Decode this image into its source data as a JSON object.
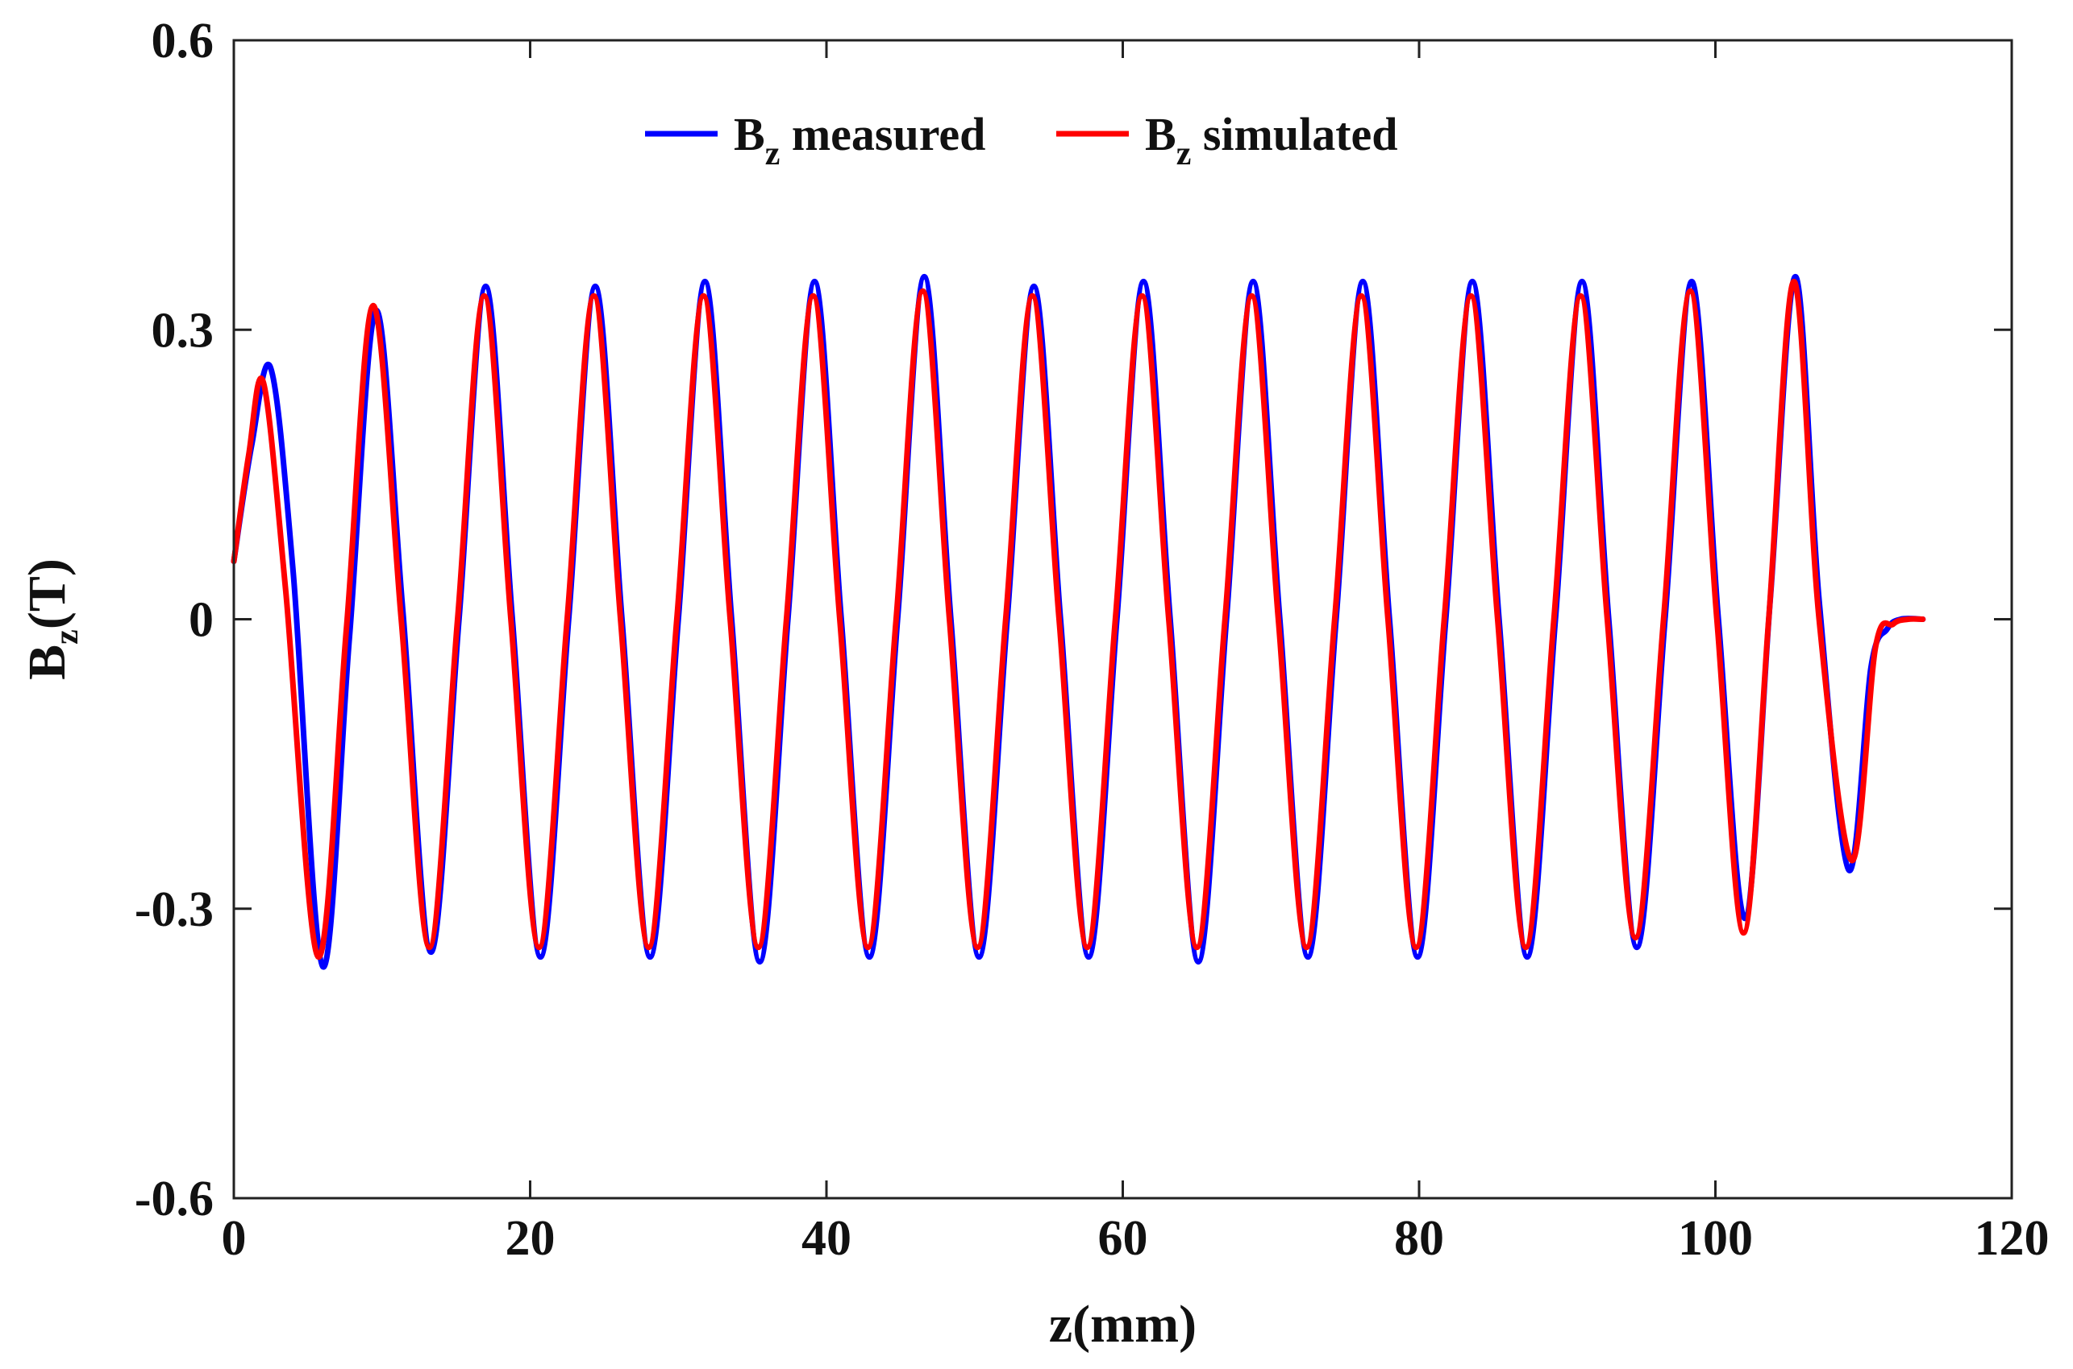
{
  "chart_data": {
    "type": "line",
    "title": "",
    "xlabel": "z(mm)",
    "ylabel": {
      "base": "B",
      "sub": "z",
      "rest": "(T)"
    },
    "xlim": [
      0,
      120
    ],
    "ylim": [
      -0.6,
      0.6
    ],
    "xticks": [
      0,
      20,
      40,
      60,
      80,
      100,
      120
    ],
    "xtick_labels": [
      "0",
      "20",
      "40",
      "60",
      "80",
      "100",
      "120"
    ],
    "yticks": [
      -0.6,
      -0.3,
      0,
      0.3,
      0.6
    ],
    "ytick_labels": [
      "-0.6",
      "-0.3",
      "0",
      "0.3",
      "0.6"
    ],
    "grid": false,
    "legend_position": "top-center",
    "series": [
      {
        "name": "measured",
        "label_base": "B",
        "label_sub": "z",
        "label_rest": " measured",
        "color": "#0000FF",
        "x": [
          0,
          1.2,
          2.5,
          4.0,
          6.0,
          7.8,
          9.6,
          11.4,
          13.3,
          15.2,
          17.0,
          18.8,
          20.7,
          22.6,
          24.4,
          26.2,
          28.1,
          30.0,
          31.8,
          33.6,
          35.5,
          37.4,
          39.2,
          41.0,
          42.9,
          44.8,
          46.6,
          48.4,
          50.3,
          52.2,
          54.0,
          55.8,
          57.7,
          59.6,
          61.4,
          63.2,
          65.1,
          67.0,
          68.8,
          70.6,
          72.5,
          74.4,
          76.2,
          78.0,
          79.9,
          81.8,
          83.6,
          85.4,
          87.3,
          89.2,
          91.0,
          92.8,
          94.7,
          96.6,
          98.4,
          100.2,
          102.0,
          103.7,
          105.4,
          107.0,
          109.0,
          110.5,
          111.6,
          112.5,
          114.0
        ],
        "y": [
          0.06,
          0.18,
          0.26,
          0.05,
          -0.36,
          -0.02,
          0.32,
          0.01,
          -0.345,
          0.0,
          0.345,
          0.0,
          -0.35,
          0.0,
          0.345,
          0.0,
          -0.35,
          0.0,
          0.35,
          0.0,
          -0.355,
          0.0,
          0.35,
          0.0,
          -0.35,
          0.0,
          0.355,
          0.0,
          -0.35,
          0.0,
          0.345,
          0.0,
          -0.35,
          0.0,
          0.35,
          0.0,
          -0.355,
          0.0,
          0.35,
          0.0,
          -0.35,
          0.0,
          0.35,
          0.0,
          -0.35,
          0.0,
          0.35,
          0.0,
          -0.35,
          0.0,
          0.35,
          0.0,
          -0.34,
          0.0,
          0.35,
          0.0,
          -0.31,
          0.02,
          0.355,
          0.02,
          -0.26,
          -0.05,
          -0.01,
          0.0,
          0.0
        ]
      },
      {
        "name": "simulated",
        "label_base": "B",
        "label_sub": "z",
        "label_rest": " simulated",
        "color": "#FF0000",
        "x": [
          0,
          1.0,
          2.0,
          3.5,
          5.7,
          7.6,
          9.4,
          11.3,
          13.2,
          15.1,
          16.9,
          18.7,
          20.6,
          22.5,
          24.3,
          26.1,
          28.0,
          29.9,
          31.7,
          33.5,
          35.4,
          37.3,
          39.1,
          40.9,
          42.8,
          44.7,
          46.5,
          48.3,
          50.2,
          52.1,
          53.9,
          55.7,
          57.6,
          59.5,
          61.3,
          63.1,
          65.0,
          66.9,
          68.7,
          70.5,
          72.4,
          74.3,
          76.1,
          77.9,
          79.8,
          81.7,
          83.5,
          85.3,
          87.2,
          89.1,
          90.9,
          92.7,
          94.6,
          96.5,
          98.3,
          100.1,
          101.9,
          103.6,
          105.3,
          107.0,
          109.2,
          110.8,
          112.0,
          113.0,
          114.0
        ],
        "y": [
          0.06,
          0.17,
          0.245,
          0.03,
          -0.35,
          -0.01,
          0.325,
          0.0,
          -0.34,
          0.0,
          0.335,
          0.0,
          -0.34,
          0.0,
          0.335,
          0.0,
          -0.34,
          0.0,
          0.335,
          0.0,
          -0.34,
          0.0,
          0.335,
          0.0,
          -0.34,
          0.0,
          0.34,
          0.0,
          -0.34,
          0.0,
          0.335,
          0.0,
          -0.34,
          0.0,
          0.335,
          0.0,
          -0.34,
          0.0,
          0.335,
          0.0,
          -0.34,
          0.0,
          0.335,
          0.0,
          -0.34,
          0.0,
          0.335,
          0.0,
          -0.34,
          0.0,
          0.335,
          0.0,
          -0.33,
          0.0,
          0.34,
          0.0,
          -0.325,
          0.0,
          0.35,
          0.0,
          -0.25,
          -0.03,
          -0.005,
          0.0,
          0.0
        ]
      }
    ]
  }
}
